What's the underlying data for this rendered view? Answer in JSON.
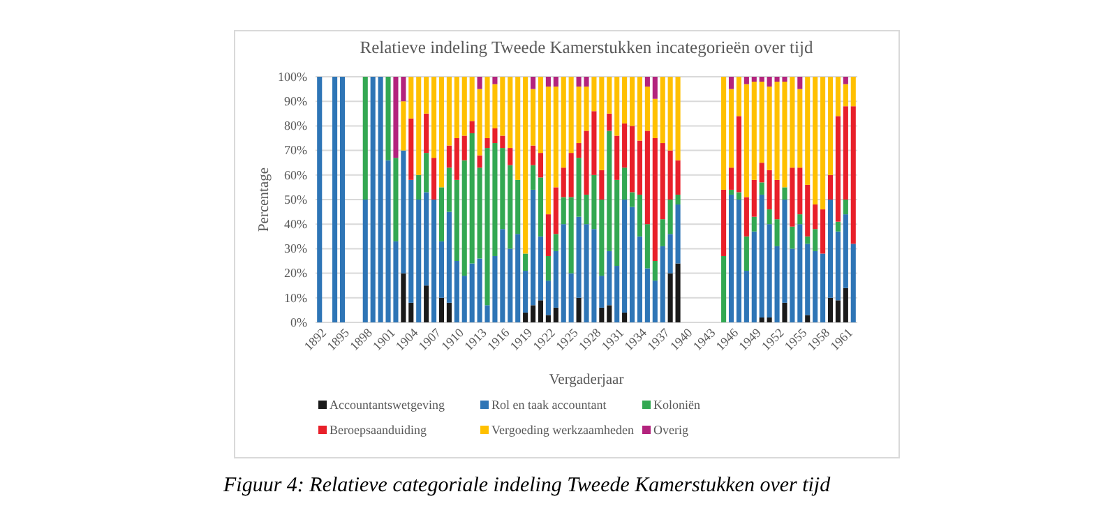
{
  "chart_data": {
    "type": "bar",
    "stacked": true,
    "title": "Relatieve indeling Tweede Kamerstukken incategorieën  over tijd",
    "xlabel": "Vergaderjaar",
    "ylabel": "Percentage",
    "categories": [
      "1892",
      null,
      null,
      "1895",
      null,
      null,
      "1898",
      null,
      null,
      "1901",
      null,
      null,
      "1904",
      null,
      null,
      "1907",
      null,
      null,
      "1910",
      null,
      null,
      "1913",
      null,
      null,
      "1916",
      null,
      null,
      "1919",
      null,
      null,
      "1922",
      null,
      null,
      "1925",
      null,
      null,
      "1928",
      null,
      null,
      "1931",
      null,
      null,
      "1934",
      null,
      null,
      "1937",
      null,
      null,
      "1940",
      null,
      null,
      "1943",
      null,
      null,
      "1946",
      null,
      null,
      "1949",
      null,
      null,
      "1952",
      null,
      null,
      "1955",
      null,
      null,
      "1958",
      null,
      null,
      "1961",
      null
    ],
    "series": [
      {
        "name": "Accountantswetgeving",
        "color": "#1a1a1a",
        "values": [
          null,
          null,
          null,
          null,
          null,
          null,
          null,
          null,
          null,
          null,
          null,
          20,
          8,
          null,
          15,
          null,
          10,
          8,
          null,
          null,
          null,
          null,
          null,
          null,
          null,
          null,
          null,
          4,
          7,
          9,
          3,
          6,
          null,
          null,
          10,
          null,
          null,
          6,
          7,
          null,
          4,
          null,
          null,
          null,
          null,
          null,
          20,
          24,
          null,
          null,
          null,
          null,
          null,
          null,
          null,
          null,
          null,
          null,
          2,
          2,
          null,
          8,
          null,
          null,
          3,
          null,
          null,
          10,
          9,
          14,
          null
        ]
      },
      {
        "name": "Rol en taak accountant",
        "color": "#2e75b6",
        "values": [
          100,
          null,
          100,
          100,
          null,
          null,
          50,
          100,
          100,
          66,
          33,
          50,
          50,
          50,
          38,
          50,
          23,
          37,
          25,
          19,
          24,
          26,
          7,
          27,
          38,
          30,
          36,
          17,
          47,
          26,
          14,
          23,
          40,
          20,
          33,
          40,
          38,
          13,
          22,
          23,
          46,
          47,
          35,
          22,
          17,
          31,
          16,
          24,
          null,
          null,
          null,
          null,
          null,
          null,
          52,
          50,
          21,
          37,
          50,
          38,
          31,
          42,
          30,
          40,
          29,
          29,
          28,
          40,
          28,
          30,
          32
        ]
      },
      {
        "name": "Koloniën",
        "color": "#33a852",
        "values": [
          null,
          null,
          null,
          null,
          null,
          null,
          50,
          null,
          null,
          34,
          34,
          null,
          null,
          10,
          16,
          null,
          22,
          18,
          33,
          47,
          53,
          37,
          64,
          46,
          33,
          34,
          22,
          7,
          10,
          24,
          10,
          7,
          11,
          31,
          24,
          12,
          22,
          31,
          49,
          35,
          13,
          6,
          17,
          18,
          8,
          11,
          14,
          4,
          null,
          null,
          null,
          null,
          null,
          27,
          2,
          3,
          14,
          6,
          5,
          6,
          11,
          5,
          9,
          4,
          3,
          9,
          null,
          null,
          4,
          6,
          null
        ]
      },
      {
        "name": "Beroepsaanduiding",
        "color": "#e8202a",
        "values": [
          null,
          null,
          null,
          null,
          null,
          null,
          null,
          null,
          null,
          null,
          null,
          null,
          25,
          null,
          16,
          17,
          null,
          9,
          17,
          10,
          5,
          5,
          4,
          6,
          5,
          7,
          null,
          null,
          8,
          10,
          17,
          19,
          12,
          18,
          6,
          26,
          26,
          12,
          7,
          18,
          18,
          27,
          22,
          38,
          50,
          31,
          20,
          14,
          null,
          null,
          null,
          null,
          null,
          27,
          9,
          31,
          16,
          15,
          8,
          16,
          16,
          null,
          24,
          19,
          21,
          10,
          18,
          10,
          43,
          38,
          56
        ]
      },
      {
        "name": "Vergoeding werkzaamheden",
        "color": "#ffc000",
        "values": [
          null,
          null,
          null,
          null,
          null,
          null,
          null,
          null,
          null,
          null,
          null,
          20,
          17,
          40,
          15,
          33,
          45,
          28,
          25,
          24,
          18,
          27,
          25,
          18,
          24,
          29,
          42,
          72,
          23,
          31,
          52,
          41,
          37,
          31,
          23,
          18,
          14,
          38,
          15,
          24,
          19,
          20,
          26,
          18,
          16,
          27,
          30,
          34,
          null,
          null,
          null,
          null,
          null,
          46,
          32,
          16,
          46,
          40,
          33,
          34,
          40,
          43,
          37,
          32,
          44,
          52,
          54,
          40,
          16,
          9,
          12
        ]
      },
      {
        "name": "Overig",
        "color": "#b3237d",
        "values": [
          null,
          null,
          null,
          null,
          null,
          null,
          null,
          null,
          null,
          null,
          33,
          10,
          null,
          null,
          null,
          null,
          null,
          null,
          null,
          null,
          null,
          5,
          null,
          3,
          null,
          null,
          null,
          null,
          5,
          null,
          4,
          4,
          null,
          null,
          4,
          4,
          null,
          null,
          null,
          null,
          null,
          null,
          null,
          4,
          9,
          null,
          null,
          null,
          null,
          null,
          null,
          null,
          null,
          null,
          5,
          null,
          3,
          2,
          2,
          4,
          2,
          2,
          null,
          5,
          null,
          null,
          null,
          null,
          null,
          3,
          null
        ]
      }
    ],
    "ylim": [
      0,
      100
    ],
    "yticks": [
      {
        "value": 0,
        "label": "0%"
      },
      {
        "value": 10,
        "label": "10%"
      },
      {
        "value": 20,
        "label": "20%"
      },
      {
        "value": 30,
        "label": "30%"
      },
      {
        "value": 40,
        "label": "40%"
      },
      {
        "value": 50,
        "label": "50%"
      },
      {
        "value": 60,
        "label": "60%"
      },
      {
        "value": 70,
        "label": "70%"
      },
      {
        "value": 80,
        "label": "80%"
      },
      {
        "value": 90,
        "label": "90%"
      },
      {
        "value": 100,
        "label": "100%"
      }
    ],
    "grid": "y",
    "legend": "bottom",
    "annotations": [
      "Figuur 4: Relatieve categoriale indeling Tweede Kamerstukken over tijd"
    ]
  }
}
